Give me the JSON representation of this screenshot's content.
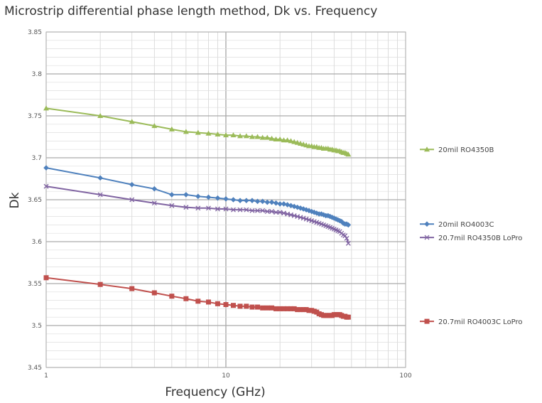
{
  "chart_data": {
    "type": "line",
    "title": "Microstrip differential phase length method, Dk vs. Frequency",
    "xlabel": "Frequency (GHz)",
    "ylabel": "Dk",
    "xscale": "log",
    "xlim": [
      1,
      100
    ],
    "ylim": [
      3.45,
      3.85
    ],
    "x_ticks": [
      "1",
      "10",
      "100"
    ],
    "y_ticks": [
      "3.45",
      "3.5",
      "3.55",
      "3.6",
      "3.65",
      "3.7",
      "3.75",
      "3.8",
      "3.85"
    ],
    "grid": true,
    "legend_position": "right",
    "series": [
      {
        "name": "20mil RO4350B",
        "color": "#9bbb59",
        "marker": "triangle",
        "x": [
          1,
          2,
          3,
          4,
          5,
          6,
          7,
          8,
          9,
          10,
          11,
          12,
          13,
          14,
          15,
          16,
          17,
          18,
          19,
          20,
          21,
          22,
          23,
          24,
          25,
          26,
          27,
          28,
          29,
          30,
          31,
          32,
          33,
          34,
          35,
          36,
          37,
          38,
          39,
          40,
          41,
          42,
          43,
          44,
          45,
          46,
          47,
          48
        ],
        "y": [
          3.759,
          3.75,
          3.743,
          3.738,
          3.734,
          3.731,
          3.73,
          3.729,
          3.728,
          3.727,
          3.727,
          3.726,
          3.726,
          3.725,
          3.725,
          3.724,
          3.724,
          3.723,
          3.722,
          3.722,
          3.721,
          3.721,
          3.72,
          3.719,
          3.718,
          3.717,
          3.716,
          3.715,
          3.714,
          3.714,
          3.713,
          3.713,
          3.712,
          3.712,
          3.711,
          3.711,
          3.711,
          3.71,
          3.71,
          3.709,
          3.709,
          3.708,
          3.708,
          3.707,
          3.706,
          3.706,
          3.705,
          3.704
        ]
      },
      {
        "name": "20mil RO4003C",
        "color": "#4f81bd",
        "marker": "diamond",
        "x": [
          1,
          2,
          3,
          4,
          5,
          6,
          7,
          8,
          9,
          10,
          11,
          12,
          13,
          14,
          15,
          16,
          17,
          18,
          19,
          20,
          21,
          22,
          23,
          24,
          25,
          26,
          27,
          28,
          29,
          30,
          31,
          32,
          33,
          34,
          35,
          36,
          37,
          38,
          39,
          40,
          41,
          42,
          43,
          44,
          45,
          46,
          47,
          48
        ],
        "y": [
          3.688,
          3.676,
          3.668,
          3.663,
          3.656,
          3.656,
          3.654,
          3.653,
          3.652,
          3.651,
          3.65,
          3.649,
          3.649,
          3.649,
          3.648,
          3.648,
          3.647,
          3.647,
          3.646,
          3.645,
          3.645,
          3.644,
          3.643,
          3.642,
          3.641,
          3.64,
          3.639,
          3.638,
          3.637,
          3.636,
          3.635,
          3.634,
          3.633,
          3.633,
          3.632,
          3.631,
          3.631,
          3.63,
          3.629,
          3.628,
          3.627,
          3.626,
          3.625,
          3.624,
          3.622,
          3.621,
          3.621,
          3.62
        ]
      },
      {
        "name": "20.7mil RO4350B LoPro",
        "color": "#8064a2",
        "marker": "x",
        "x": [
          1,
          2,
          3,
          4,
          5,
          6,
          7,
          8,
          9,
          10,
          11,
          12,
          13,
          14,
          15,
          16,
          17,
          18,
          19,
          20,
          21,
          22,
          23,
          24,
          25,
          26,
          27,
          28,
          29,
          30,
          31,
          32,
          33,
          34,
          35,
          36,
          37,
          38,
          39,
          40,
          41,
          42,
          43,
          44,
          45,
          46,
          47,
          48
        ],
        "y": [
          3.666,
          3.656,
          3.65,
          3.646,
          3.643,
          3.641,
          3.64,
          3.64,
          3.639,
          3.639,
          3.638,
          3.638,
          3.638,
          3.637,
          3.637,
          3.637,
          3.636,
          3.636,
          3.635,
          3.635,
          3.634,
          3.633,
          3.632,
          3.631,
          3.63,
          3.629,
          3.628,
          3.627,
          3.626,
          3.625,
          3.624,
          3.623,
          3.622,
          3.621,
          3.62,
          3.619,
          3.618,
          3.617,
          3.616,
          3.615,
          3.614,
          3.613,
          3.612,
          3.61,
          3.608,
          3.607,
          3.604,
          3.598
        ]
      },
      {
        "name": "20.7mil RO4003C LoPro",
        "color": "#c0504d",
        "marker": "square",
        "x": [
          1,
          2,
          3,
          4,
          5,
          6,
          7,
          8,
          9,
          10,
          11,
          12,
          13,
          14,
          15,
          16,
          17,
          18,
          19,
          20,
          21,
          22,
          23,
          24,
          25,
          26,
          27,
          28,
          29,
          30,
          31,
          32,
          33,
          34,
          35,
          36,
          37,
          38,
          39,
          40,
          41,
          42,
          43,
          44,
          45,
          46,
          47,
          48
        ],
        "y": [
          3.557,
          3.549,
          3.544,
          3.539,
          3.535,
          3.532,
          3.529,
          3.528,
          3.526,
          3.525,
          3.524,
          3.523,
          3.523,
          3.522,
          3.522,
          3.521,
          3.521,
          3.521,
          3.52,
          3.52,
          3.52,
          3.52,
          3.52,
          3.52,
          3.519,
          3.519,
          3.519,
          3.519,
          3.518,
          3.518,
          3.517,
          3.516,
          3.514,
          3.513,
          3.512,
          3.512,
          3.512,
          3.512,
          3.512,
          3.513,
          3.513,
          3.513,
          3.513,
          3.512,
          3.511,
          3.511,
          3.51,
          3.51
        ]
      }
    ]
  }
}
